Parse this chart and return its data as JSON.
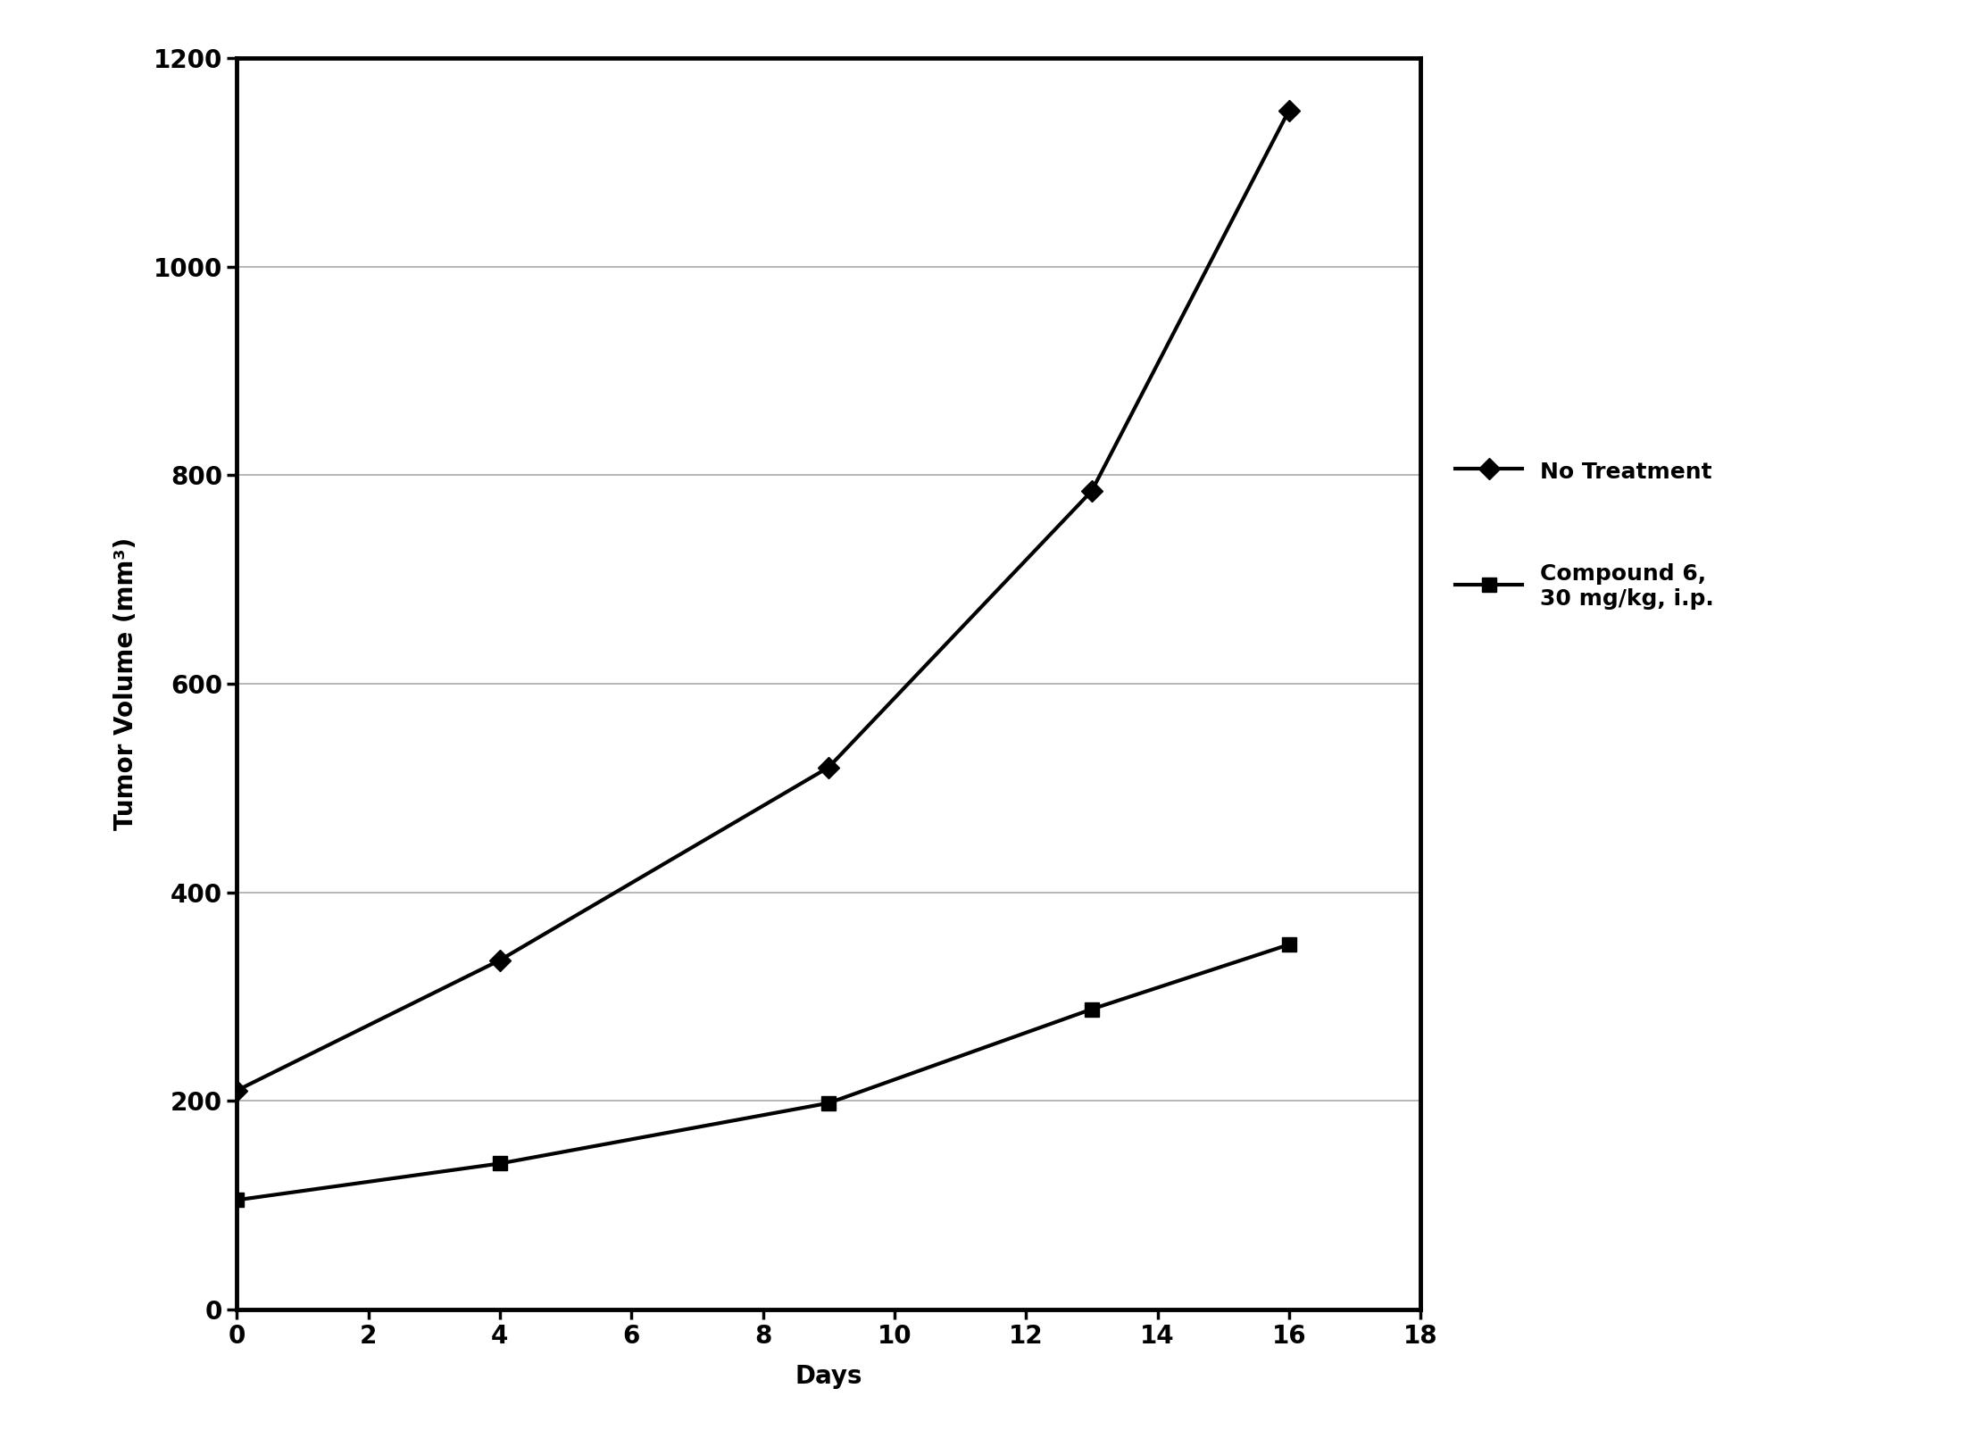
{
  "no_treatment_x": [
    0,
    4,
    9,
    13,
    16
  ],
  "no_treatment_y": [
    210,
    335,
    520,
    785,
    1150
  ],
  "compound6_x": [
    0,
    4,
    9,
    13,
    16
  ],
  "compound6_y": [
    105,
    140,
    198,
    288,
    350
  ],
  "xlabel": "Days",
  "ylabel": "Tumor Volume (mm³)",
  "xlim": [
    0,
    18
  ],
  "ylim": [
    0,
    1200
  ],
  "xticks": [
    0,
    2,
    4,
    6,
    8,
    10,
    12,
    14,
    16,
    18
  ],
  "yticks": [
    0,
    200,
    400,
    600,
    800,
    1000,
    1200
  ],
  "legend1": "No Treatment",
  "legend2": "Compound 6,\n30 mg/kg, i.p.",
  "line_color": "#000000",
  "background_color": "#ffffff",
  "axis_fontsize": 20,
  "tick_fontsize": 20,
  "legend_fontsize": 18
}
